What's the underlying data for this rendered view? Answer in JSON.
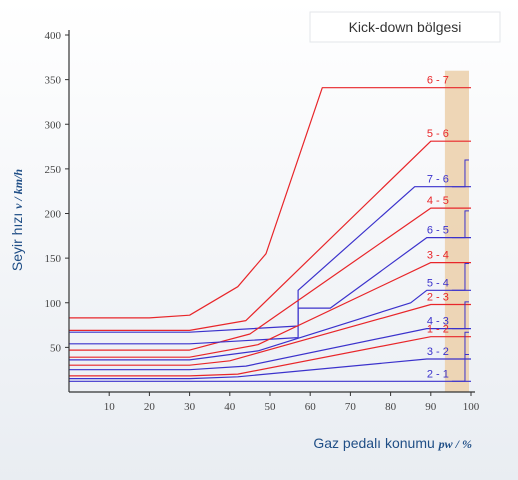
{
  "chart_data": {
    "type": "line",
    "title": "",
    "ylabel": {
      "text": "Seyir hızı",
      "unit": "v / km/h"
    },
    "xlabel": {
      "text": "Gaz pedalı konumu",
      "unit": "pw / %"
    },
    "xlim": [
      0,
      100
    ],
    "ylim": [
      0,
      400
    ],
    "x_ticks": [
      10,
      20,
      30,
      40,
      50,
      60,
      70,
      80,
      90,
      100
    ],
    "y_ticks": [
      50,
      100,
      150,
      200,
      250,
      300,
      350,
      400
    ],
    "kickdown": {
      "label": "Kick-down bölgesi",
      "x_range": [
        95,
        100
      ],
      "color": "#ecd2ae"
    },
    "colors": {
      "upshift": "#e8262a",
      "downshift": "#3b32cc",
      "axis": "#333333",
      "title": "#1f4e86"
    },
    "series": [
      {
        "name": "6 - 7",
        "kind": "up",
        "x": [
          0,
          20,
          30,
          42,
          49,
          63,
          100
        ],
        "y": [
          83,
          83,
          86,
          118,
          155,
          341,
          341
        ]
      },
      {
        "name": "5 - 6",
        "kind": "up",
        "x": [
          0,
          30,
          44,
          90,
          100
        ],
        "y": [
          69,
          69,
          80,
          281,
          281
        ]
      },
      {
        "name": "7 - 6",
        "kind": "down",
        "x": [
          0,
          30,
          57,
          57,
          86,
          100
        ],
        "y": [
          67,
          67,
          74,
          114,
          230,
          230
        ]
      },
      {
        "name": "4 - 5",
        "kind": "up",
        "x": [
          0,
          30,
          45,
          90,
          100
        ],
        "y": [
          47,
          47,
          65,
          206,
          206
        ]
      },
      {
        "name": "6 - 5",
        "kind": "down",
        "x": [
          0,
          30,
          57,
          57,
          65,
          89,
          100
        ],
        "y": [
          54,
          54,
          61,
          94,
          94,
          173,
          173
        ]
      },
      {
        "name": "3 - 4",
        "kind": "up",
        "x": [
          0,
          30,
          47,
          90,
          100
        ],
        "y": [
          39,
          39,
          53,
          145,
          145
        ]
      },
      {
        "name": "5 - 4",
        "kind": "down",
        "x": [
          0,
          30,
          47,
          85,
          89,
          100
        ],
        "y": [
          36,
          36,
          46,
          100,
          114,
          114
        ]
      },
      {
        "name": "2 - 3",
        "kind": "up",
        "x": [
          0,
          30,
          40,
          90,
          100
        ],
        "y": [
          30,
          30,
          35,
          98,
          98
        ]
      },
      {
        "name": "4 - 3",
        "kind": "down",
        "x": [
          0,
          30,
          44,
          89,
          100
        ],
        "y": [
          25,
          25,
          29,
          71,
          71
        ]
      },
      {
        "name": "1 - 2",
        "kind": "up",
        "x": [
          0,
          30,
          42,
          90,
          100
        ],
        "y": [
          18,
          18,
          20,
          62,
          62
        ]
      },
      {
        "name": "3 - 2",
        "kind": "down",
        "x": [
          0,
          30,
          42,
          89,
          100
        ],
        "y": [
          15,
          15,
          17,
          37,
          37
        ]
      },
      {
        "name": "2 - 1",
        "kind": "down",
        "x": [
          0,
          42,
          90,
          100
        ],
        "y": [
          12,
          12,
          12,
          12
        ]
      }
    ]
  }
}
